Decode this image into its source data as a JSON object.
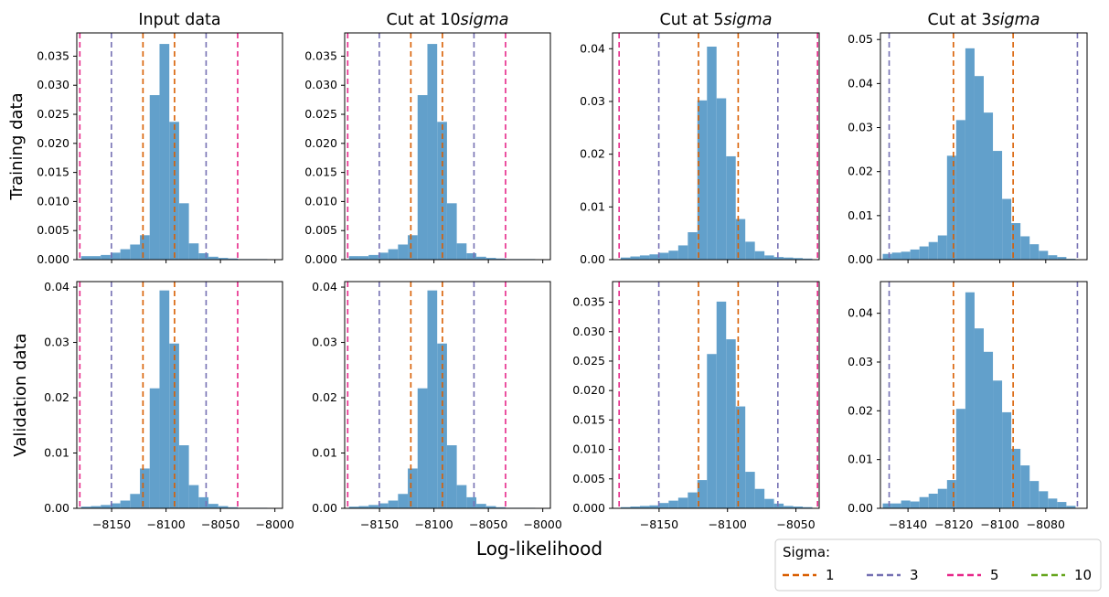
{
  "figure": {
    "xlabel": "Log-likelihood",
    "row_labels": [
      "Training data",
      "Validation data"
    ],
    "legend": {
      "title": "Sigma:",
      "entries": [
        {
          "label": "1",
          "color": "#d95f02"
        },
        {
          "label": "3",
          "color": "#7570b3"
        },
        {
          "label": "5",
          "color": "#e7298a"
        },
        {
          "label": "10",
          "color": "#66a61e"
        }
      ]
    }
  },
  "chart_data": [
    {
      "type": "bar",
      "title": "Input data",
      "ylabel": "Training data",
      "xlabel": "",
      "xlim": [
        -8182,
        -7993
      ],
      "ylim": [
        0,
        0.039
      ],
      "xticks": [
        -8150,
        -8100,
        -8050,
        -8000
      ],
      "xticklabels": [],
      "yticks": [
        0,
        0.005,
        0.01,
        0.015,
        0.02,
        0.025,
        0.03,
        0.035
      ],
      "yticklabels": [
        "0.000",
        "0.005",
        "0.010",
        "0.015",
        "0.020",
        "0.025",
        "0.030",
        "0.035"
      ],
      "bin_edges": [
        -8178,
        -8169,
        -8160,
        -8151,
        -8142,
        -8133,
        -8124,
        -8115,
        -8106,
        -8097,
        -8088,
        -8079,
        -8070,
        -8061,
        -8052,
        -8043,
        -8034,
        -8025,
        -8016,
        -8007
      ],
      "values": [
        0.0006,
        0.0006,
        0.0008,
        0.0012,
        0.0018,
        0.0026,
        0.0042,
        0.0283,
        0.0371,
        0.0237,
        0.0097,
        0.0028,
        0.0011,
        0.0005,
        0.0003,
        0.0002,
        0.0001,
        0.0001,
        0.0001
      ],
      "vlines": [
        {
          "sigma": "1",
          "x": -8121.2
        },
        {
          "sigma": "1",
          "x": -8092.2
        },
        {
          "sigma": "3",
          "x": -8150.2
        },
        {
          "sigma": "3",
          "x": -8063.2
        },
        {
          "sigma": "5",
          "x": -8179.2
        },
        {
          "sigma": "5",
          "x": -8034.2
        }
      ]
    },
    {
      "type": "bar",
      "title": "Cut at 10$sigma$",
      "xlabel": "",
      "xlim": [
        -8182,
        -7993
      ],
      "ylim": [
        0,
        0.039
      ],
      "xticks": [
        -8150,
        -8100,
        -8050,
        -8000
      ],
      "xticklabels": [],
      "yticks": [
        0,
        0.005,
        0.01,
        0.015,
        0.02,
        0.025,
        0.03,
        0.035
      ],
      "yticklabels": [
        "0.000",
        "0.005",
        "0.010",
        "0.015",
        "0.020",
        "0.025",
        "0.030",
        "0.035"
      ],
      "bin_edges": [
        -8178,
        -8169,
        -8160,
        -8151,
        -8142,
        -8133,
        -8124,
        -8115,
        -8106,
        -8097,
        -8088,
        -8079,
        -8070,
        -8061,
        -8052,
        -8043,
        -8034,
        -8025,
        -8016,
        -8007
      ],
      "values": [
        0.0006,
        0.0006,
        0.0008,
        0.0012,
        0.0018,
        0.0026,
        0.0042,
        0.0283,
        0.0371,
        0.0237,
        0.0097,
        0.0028,
        0.0011,
        0.0005,
        0.0003,
        0.0002,
        0.0001,
        0.0001,
        0.0001
      ],
      "vlines": [
        {
          "sigma": "1",
          "x": -8121.2
        },
        {
          "sigma": "1",
          "x": -8092.2
        },
        {
          "sigma": "3",
          "x": -8150.2
        },
        {
          "sigma": "3",
          "x": -8063.2
        },
        {
          "sigma": "5",
          "x": -8179.2
        },
        {
          "sigma": "5",
          "x": -8034.2
        }
      ]
    },
    {
      "type": "bar",
      "title": "Cut at 5$sigma$",
      "xlabel": "",
      "xlim": [
        -8184,
        -8033
      ],
      "ylim": [
        0,
        0.043
      ],
      "xticks": [
        -8150,
        -8100,
        -8050
      ],
      "xticklabels": [],
      "yticks": [
        0,
        0.01,
        0.02,
        0.03,
        0.04
      ],
      "yticklabels": [
        "0.00",
        "0.01",
        "0.02",
        "0.03",
        "0.04"
      ],
      "bin_edges": [
        -8178,
        -8171,
        -8164,
        -8157,
        -8150,
        -8143,
        -8136,
        -8129,
        -8122,
        -8115,
        -8108,
        -8101,
        -8094,
        -8087,
        -8080,
        -8073,
        -8066,
        -8059,
        -8052,
        -8045,
        -8038
      ],
      "values": [
        0.0004,
        0.0006,
        0.0008,
        0.001,
        0.0013,
        0.0017,
        0.0027,
        0.0052,
        0.0302,
        0.0404,
        0.0306,
        0.0196,
        0.0077,
        0.0034,
        0.0016,
        0.0008,
        0.0005,
        0.0004,
        0.0003,
        0.0002
      ],
      "vlines": [
        {
          "sigma": "1",
          "x": -8121.2
        },
        {
          "sigma": "1",
          "x": -8092.2
        },
        {
          "sigma": "3",
          "x": -8150.2
        },
        {
          "sigma": "3",
          "x": -8063.2
        },
        {
          "sigma": "5",
          "x": -8179.2
        },
        {
          "sigma": "5",
          "x": -8034.2
        }
      ]
    },
    {
      "type": "bar",
      "title": "Cut at 3$sigma$",
      "xlabel": "",
      "xlim": [
        -8152,
        -8062
      ],
      "ylim": [
        0,
        0.0515
      ],
      "xticks": [
        -8140,
        -8120,
        -8100,
        -8080
      ],
      "xticklabels": [],
      "yticks": [
        0,
        0.01,
        0.02,
        0.03,
        0.04,
        0.05
      ],
      "yticklabels": [
        "0.00",
        "0.01",
        "0.02",
        "0.03",
        "0.04",
        "0.05"
      ],
      "bin_edges": [
        -8151,
        -8147,
        -8143,
        -8139,
        -8135,
        -8131,
        -8127,
        -8123,
        -8119,
        -8115,
        -8111,
        -8107,
        -8103,
        -8099,
        -8095,
        -8091,
        -8087,
        -8083,
        -8079,
        -8075,
        -8071,
        -8067
      ],
      "values": [
        0.0013,
        0.0016,
        0.0018,
        0.0023,
        0.003,
        0.004,
        0.0055,
        0.0236,
        0.0317,
        0.048,
        0.0417,
        0.0334,
        0.0247,
        0.0138,
        0.0083,
        0.0053,
        0.0035,
        0.002,
        0.001,
        0.0006,
        0.0002
      ],
      "vlines": [
        {
          "sigma": "1",
          "x": -8120.2
        },
        {
          "sigma": "1",
          "x": -8094.2
        },
        {
          "sigma": "3",
          "x": -8148.2
        },
        {
          "sigma": "3",
          "x": -8066.2
        }
      ]
    },
    {
      "type": "bar",
      "title": "",
      "ylabel": "Validation data",
      "xlabel": "",
      "xlim": [
        -8182,
        -7993
      ],
      "ylim": [
        0,
        0.041
      ],
      "xticks": [
        -8150,
        -8100,
        -8050,
        -8000
      ],
      "xticklabels": [
        "−8150",
        "−8100",
        "−8050",
        "−8000"
      ],
      "yticks": [
        0,
        0.01,
        0.02,
        0.03,
        0.04
      ],
      "yticklabels": [
        "0.00",
        "0.01",
        "0.02",
        "0.03",
        "0.04"
      ],
      "bin_edges": [
        -8178,
        -8169,
        -8160,
        -8151,
        -8142,
        -8133,
        -8124,
        -8115,
        -8106,
        -8097,
        -8088,
        -8079,
        -8070,
        -8061,
        -8052,
        -8043,
        -8034,
        -8025,
        -8016,
        -8007
      ],
      "values": [
        0.0003,
        0.0004,
        0.0006,
        0.0009,
        0.0014,
        0.0026,
        0.0072,
        0.0217,
        0.0394,
        0.0298,
        0.0114,
        0.0042,
        0.002,
        0.0008,
        0.0004,
        0.0002,
        0.0001,
        0.0001,
        0.0001
      ],
      "vlines": [
        {
          "sigma": "1",
          "x": -8121.2
        },
        {
          "sigma": "1",
          "x": -8092.2
        },
        {
          "sigma": "3",
          "x": -8150.2
        },
        {
          "sigma": "3",
          "x": -8063.2
        },
        {
          "sigma": "5",
          "x": -8179.2
        },
        {
          "sigma": "5",
          "x": -8034.2
        }
      ]
    },
    {
      "type": "bar",
      "title": "",
      "xlabel": "Log-likelihood",
      "xlim": [
        -8182,
        -7993
      ],
      "ylim": [
        0,
        0.041
      ],
      "xticks": [
        -8150,
        -8100,
        -8050,
        -8000
      ],
      "xticklabels": [
        "−8150",
        "−8100",
        "−8050",
        "−8000"
      ],
      "yticks": [
        0,
        0.01,
        0.02,
        0.03,
        0.04
      ],
      "yticklabels": [
        "0.00",
        "0.01",
        "0.02",
        "0.03",
        "0.04"
      ],
      "bin_edges": [
        -8178,
        -8169,
        -8160,
        -8151,
        -8142,
        -8133,
        -8124,
        -8115,
        -8106,
        -8097,
        -8088,
        -8079,
        -8070,
        -8061,
        -8052,
        -8043,
        -8034,
        -8025,
        -8016,
        -8007
      ],
      "values": [
        0.0003,
        0.0004,
        0.0006,
        0.0009,
        0.0014,
        0.0026,
        0.0072,
        0.0217,
        0.0394,
        0.0298,
        0.0114,
        0.0042,
        0.002,
        0.0008,
        0.0004,
        0.0002,
        0.0001,
        0.0001,
        0.0001
      ],
      "vlines": [
        {
          "sigma": "1",
          "x": -8121.2
        },
        {
          "sigma": "1",
          "x": -8092.2
        },
        {
          "sigma": "3",
          "x": -8150.2
        },
        {
          "sigma": "3",
          "x": -8063.2
        },
        {
          "sigma": "5",
          "x": -8179.2
        },
        {
          "sigma": "5",
          "x": -8034.2
        }
      ]
    },
    {
      "type": "bar",
      "title": "",
      "xlabel": "",
      "xlim": [
        -8184,
        -8033
      ],
      "ylim": [
        0,
        0.0385
      ],
      "xticks": [
        -8150,
        -8100,
        -8050
      ],
      "xticklabels": [
        "−8150",
        "−8100",
        "−8050"
      ],
      "yticks": [
        0,
        0.005,
        0.01,
        0.015,
        0.02,
        0.025,
        0.03,
        0.035
      ],
      "yticklabels": [
        "0.000",
        "0.005",
        "0.010",
        "0.015",
        "0.020",
        "0.025",
        "0.030",
        "0.035"
      ],
      "bin_edges": [
        -8178,
        -8171,
        -8164,
        -8157,
        -8150,
        -8143,
        -8136,
        -8129,
        -8122,
        -8115,
        -8108,
        -8101,
        -8094,
        -8087,
        -8080,
        -8073,
        -8066,
        -8059,
        -8052,
        -8045,
        -8038
      ],
      "values": [
        0.0002,
        0.0003,
        0.0004,
        0.0005,
        0.0009,
        0.0013,
        0.0018,
        0.0027,
        0.0048,
        0.0262,
        0.0351,
        0.0287,
        0.0173,
        0.0062,
        0.0033,
        0.0016,
        0.0008,
        0.0004,
        0.0003,
        0.0002
      ],
      "vlines": [
        {
          "sigma": "1",
          "x": -8121.2
        },
        {
          "sigma": "1",
          "x": -8092.2
        },
        {
          "sigma": "3",
          "x": -8150.2
        },
        {
          "sigma": "3",
          "x": -8063.2
        },
        {
          "sigma": "5",
          "x": -8179.2
        },
        {
          "sigma": "5",
          "x": -8034.2
        }
      ]
    },
    {
      "type": "bar",
      "title": "",
      "xlabel": "",
      "xlim": [
        -8152,
        -8062
      ],
      "ylim": [
        0,
        0.0465
      ],
      "xticks": [
        -8140,
        -8120,
        -8100,
        -8080
      ],
      "xticklabels": [
        "−8140",
        "−8120",
        "−8100",
        "−8080"
      ],
      "yticks": [
        0,
        0.01,
        0.02,
        0.03,
        0.04
      ],
      "yticklabels": [
        "0.00",
        "0.01",
        "0.02",
        "0.03",
        "0.04"
      ],
      "bin_edges": [
        -8151,
        -8147,
        -8143,
        -8139,
        -8135,
        -8131,
        -8127,
        -8123,
        -8119,
        -8115,
        -8111,
        -8107,
        -8103,
        -8099,
        -8095,
        -8091,
        -8087,
        -8083,
        -8079,
        -8075,
        -8071,
        -8067
      ],
      "values": [
        0.001,
        0.001,
        0.0016,
        0.0014,
        0.0023,
        0.003,
        0.004,
        0.0058,
        0.0204,
        0.0443,
        0.0369,
        0.0321,
        0.0262,
        0.0197,
        0.0122,
        0.0088,
        0.0056,
        0.0035,
        0.002,
        0.0013,
        0.0005
      ],
      "vlines": [
        {
          "sigma": "1",
          "x": -8120.2
        },
        {
          "sigma": "1",
          "x": -8094.2
        },
        {
          "sigma": "3",
          "x": -8148.2
        },
        {
          "sigma": "3",
          "x": -8066.2
        }
      ]
    }
  ]
}
